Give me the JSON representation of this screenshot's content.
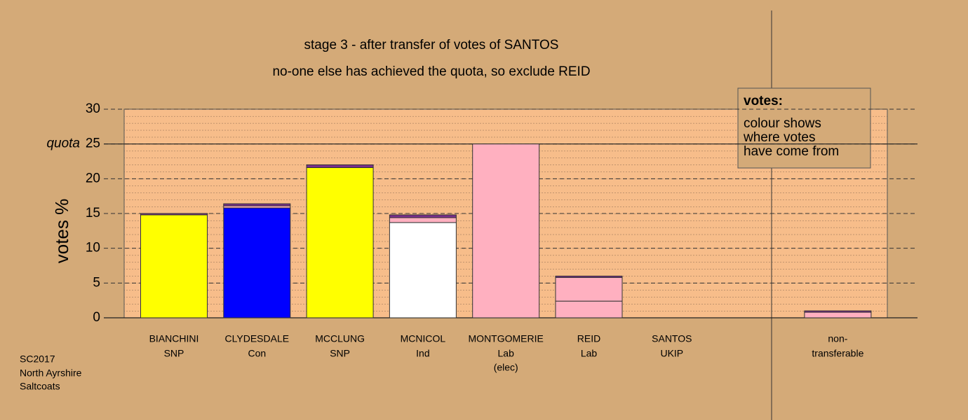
{
  "chart_data": {
    "type": "bar",
    "stacked": true,
    "title": "stage 3 - after transfer of votes of SANTOS",
    "subtitle": "no-one else has achieved the quota, so exclude REID",
    "y_label": "votes %",
    "categories": [
      "BIANCHINI",
      "CLYDESDALE",
      "MCCLUNG",
      "MCNICOL",
      "MONTGOMERIE",
      "REID",
      "SANTOS",
      "non-"
    ],
    "sublabels": [
      "SNP",
      "Con",
      "SNP",
      "Ind",
      "Lab",
      "Lab",
      "UKIP",
      "transferable"
    ],
    "notes": [
      null,
      null,
      null,
      null,
      "(elec)",
      null,
      null,
      null
    ],
    "series": [
      {
        "color": "#ffff00",
        "values": [
          14.8,
          0,
          21.6,
          0,
          0,
          0,
          0,
          0
        ]
      },
      {
        "color": "#0000ff",
        "values": [
          0,
          15.8,
          0,
          0,
          0,
          0,
          0,
          0
        ]
      },
      {
        "color": "#ffffff",
        "values": [
          0,
          0,
          0,
          13.7,
          0,
          0,
          0,
          0
        ]
      },
      {
        "color": "#ffb0c0",
        "values": [
          0,
          0,
          0,
          0,
          25,
          2.4,
          0,
          0
        ]
      },
      {
        "color": "#ffb0c0",
        "values": [
          0,
          0.3,
          0,
          0.7,
          0,
          3.4,
          0,
          0.8
        ]
      },
      {
        "color": "#7a2f8c",
        "values": [
          0.2,
          0.3,
          0.4,
          0.4,
          0,
          0.2,
          0,
          0.2
        ]
      }
    ],
    "ylim": [
      0,
      30
    ],
    "yticks": [
      0,
      5,
      10,
      15,
      20,
      25,
      30
    ],
    "minor_grid_step": 1,
    "quota": 25,
    "quota_label": "quota",
    "legend_title": "votes:",
    "legend_lines": [
      "colour shows",
      "where votes",
      "have come from"
    ],
    "footer": [
      "SC2017",
      "North Ayrshire",
      "Saltcoats"
    ]
  }
}
